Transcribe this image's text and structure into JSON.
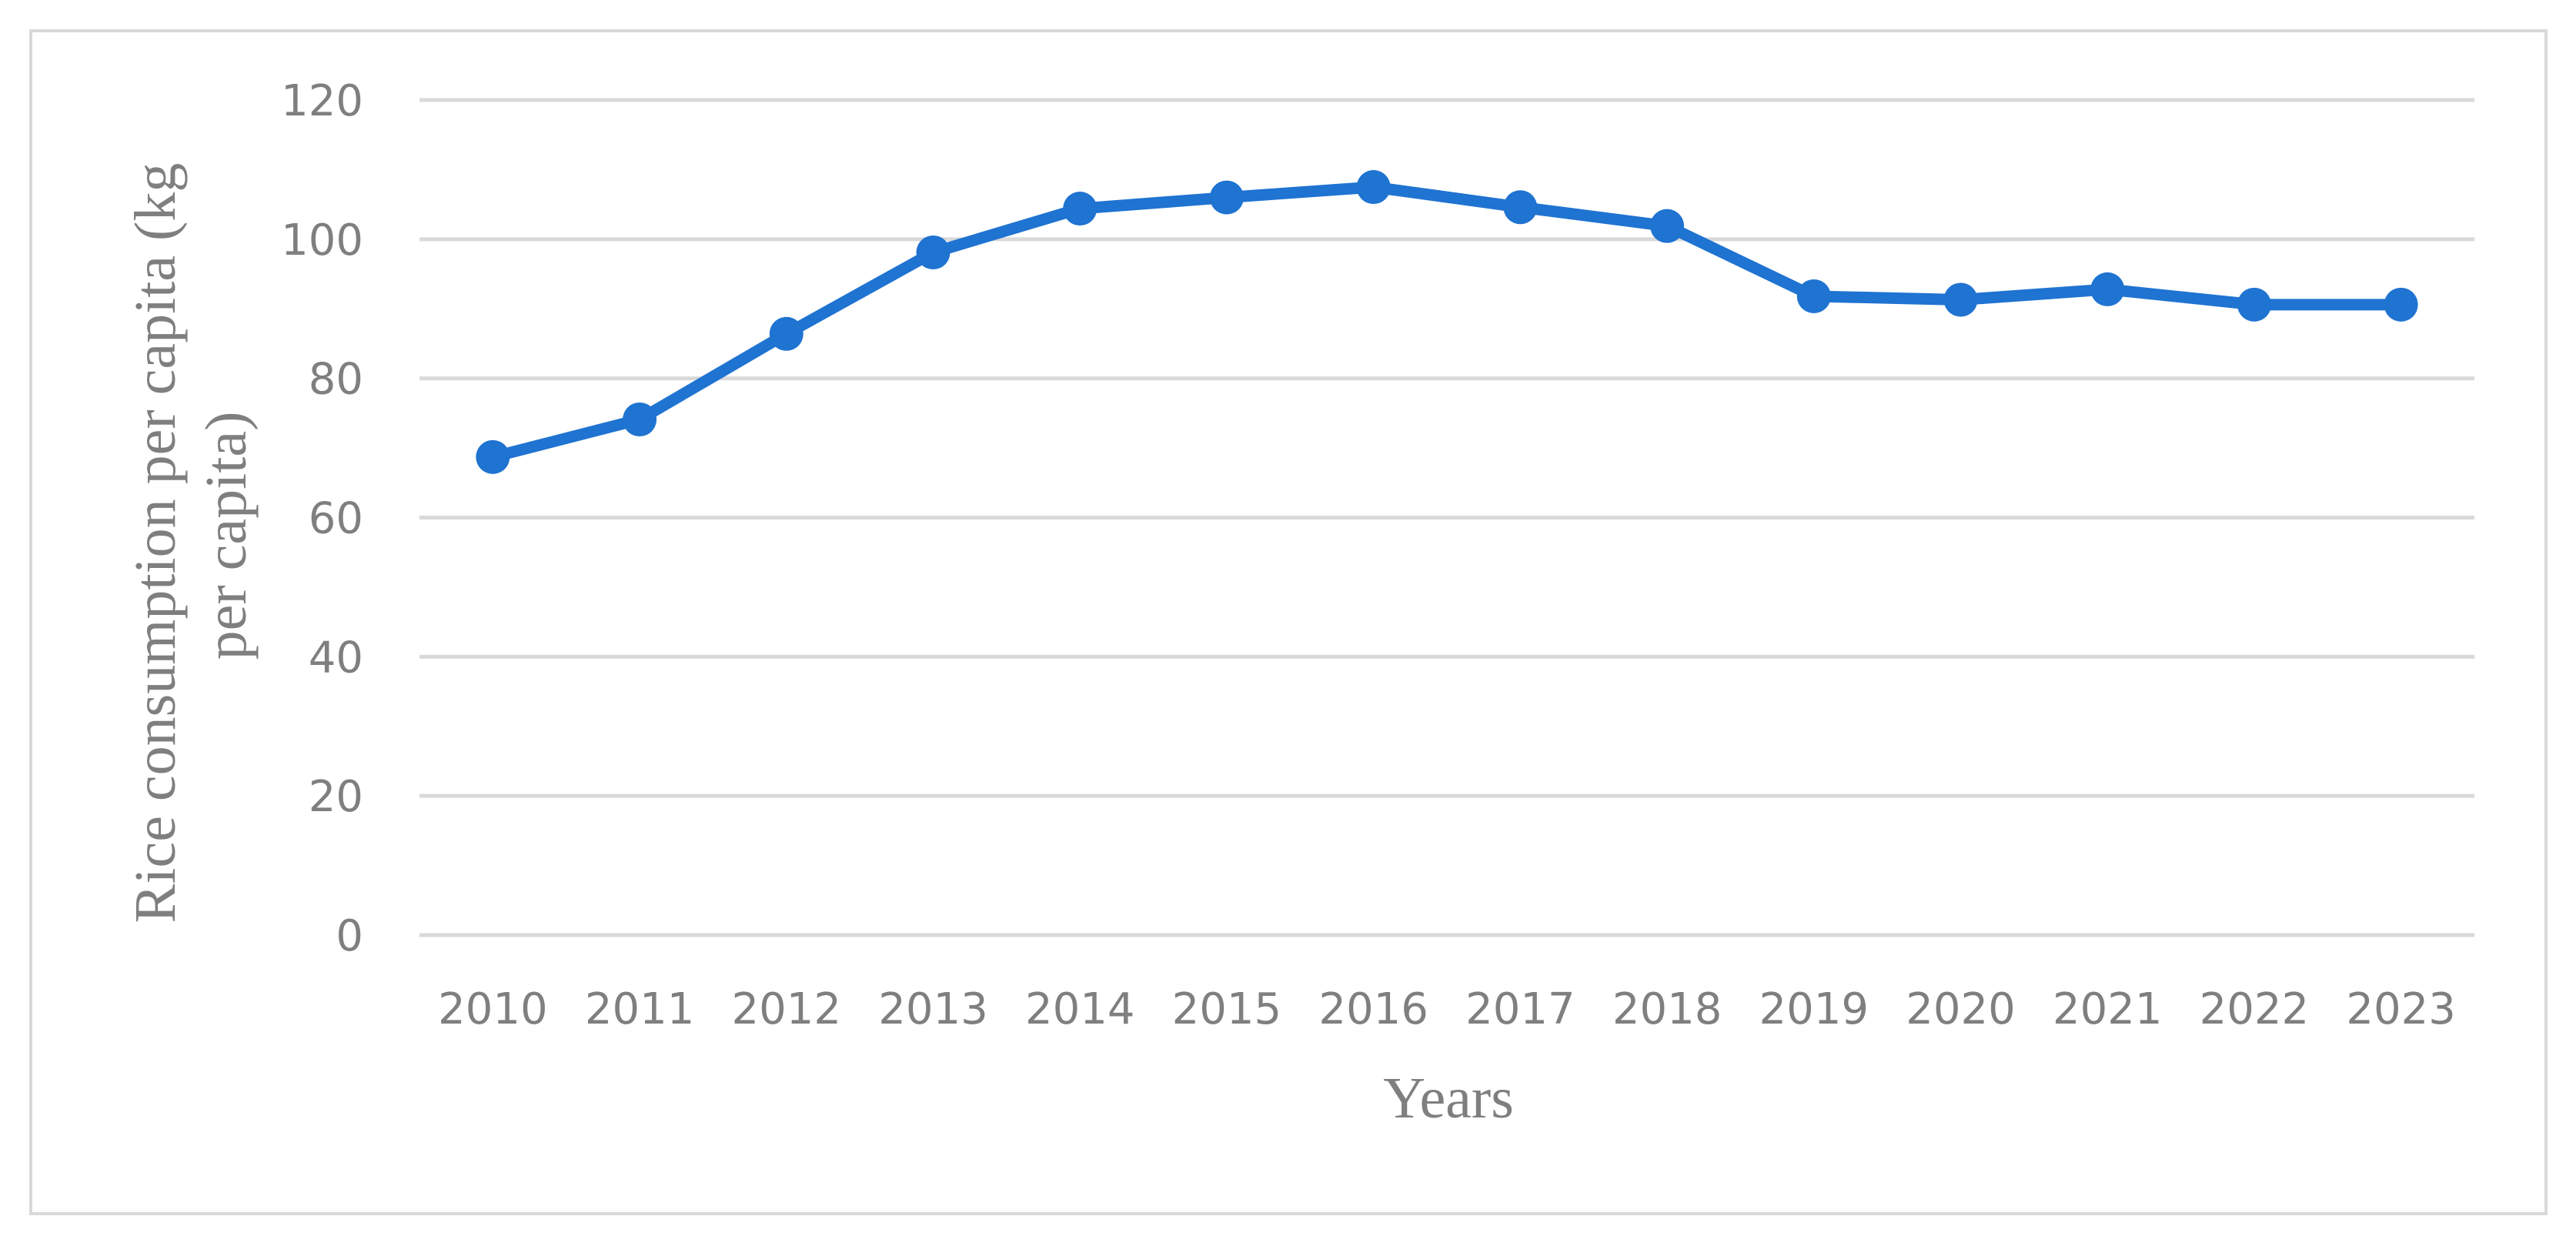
{
  "chart_data": {
    "type": "line",
    "title": "",
    "xlabel": "Years",
    "ylabel_lines": [
      "Rice consumption per capita (kg",
      "per capita)"
    ],
    "categories": [
      "2010",
      "2011",
      "2012",
      "2013",
      "2014",
      "2015",
      "2016",
      "2017",
      "2018",
      "2019",
      "2020",
      "2021",
      "2022",
      "2023"
    ],
    "series": [
      {
        "values": [
          68.7,
          74.1,
          86.4,
          98.1,
          104.4,
          106.0,
          107.5,
          104.6,
          101.9,
          91.8,
          91.3,
          92.8,
          90.6,
          90.6
        ]
      }
    ],
    "ylim": [
      0,
      120
    ],
    "yticks": [
      0,
      20,
      40,
      60,
      80,
      100,
      120
    ],
    "grid": true,
    "legend": "none",
    "colors": {
      "line": "#1f73d1",
      "grid": "#d9d9d9",
      "text": "#7f7f7f",
      "border": "#d9d9d9"
    }
  }
}
